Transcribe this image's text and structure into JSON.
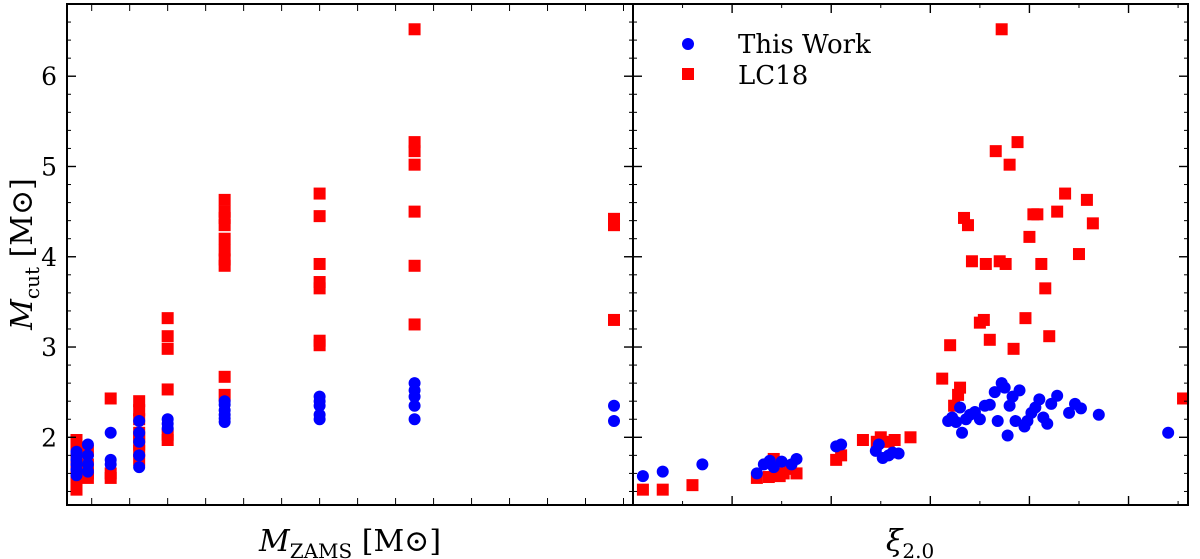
{
  "chart_data": [
    {
      "type": "scatter",
      "panel": "left",
      "xlabel": "M_ZAMS [M_⊙]",
      "ylabel": "M_cut [M_⊙]",
      "xlim": [
        10.7,
        40.5
      ],
      "ylim": [
        1.25,
        6.8
      ],
      "x_ticks_minor": [
        12,
        14,
        16,
        18,
        20,
        22,
        24,
        26,
        28,
        30,
        32,
        34,
        36,
        38,
        40
      ],
      "y_ticks": [
        2,
        3,
        4,
        5,
        6
      ],
      "y_tick_labels": [
        "2",
        "3",
        "4",
        "5",
        "6"
      ],
      "grid": false,
      "series": [
        {
          "name": "This Work",
          "marker": "circle",
          "color": "#0000ff",
          "points": [
            [
              11.2,
              1.58
            ],
            [
              11.2,
              1.64
            ],
            [
              11.2,
              1.7
            ],
            [
              11.2,
              1.75
            ],
            [
              11.2,
              1.8
            ],
            [
              11.2,
              1.84
            ],
            [
              11.8,
              1.62
            ],
            [
              11.8,
              1.7
            ],
            [
              11.8,
              1.8
            ],
            [
              11.8,
              1.92
            ],
            [
              13.0,
              1.7
            ],
            [
              13.0,
              1.75
            ],
            [
              13.0,
              2.05
            ],
            [
              14.5,
              1.67
            ],
            [
              14.5,
              1.8
            ],
            [
              14.5,
              1.95
            ],
            [
              14.5,
              2.05
            ],
            [
              14.5,
              2.18
            ],
            [
              16.0,
              2.1
            ],
            [
              16.0,
              2.15
            ],
            [
              16.0,
              2.2
            ],
            [
              19.0,
              2.17
            ],
            [
              19.0,
              2.21
            ],
            [
              19.0,
              2.25
            ],
            [
              19.0,
              2.3
            ],
            [
              19.0,
              2.36
            ],
            [
              19.0,
              2.4
            ],
            [
              24.0,
              2.2
            ],
            [
              24.0,
              2.25
            ],
            [
              24.0,
              2.35
            ],
            [
              24.0,
              2.4
            ],
            [
              24.0,
              2.45
            ],
            [
              29.0,
              2.2
            ],
            [
              29.0,
              2.35
            ],
            [
              29.0,
              2.45
            ],
            [
              29.0,
              2.52
            ],
            [
              29.0,
              2.6
            ],
            [
              39.5,
              2.18
            ],
            [
              39.5,
              2.35
            ]
          ]
        },
        {
          "name": "LC18",
          "marker": "square",
          "color": "#ff0000",
          "points": [
            [
              11.2,
              1.42
            ],
            [
              11.2,
              1.5
            ],
            [
              11.2,
              1.6
            ],
            [
              11.2,
              1.7
            ],
            [
              11.2,
              1.8
            ],
            [
              11.2,
              1.88
            ],
            [
              11.2,
              1.97
            ],
            [
              11.8,
              1.55
            ],
            [
              11.8,
              1.6
            ],
            [
              11.8,
              1.7
            ],
            [
              11.8,
              1.85
            ],
            [
              13.0,
              1.55
            ],
            [
              13.0,
              1.6
            ],
            [
              13.0,
              2.43
            ],
            [
              14.5,
              1.75
            ],
            [
              14.5,
              1.85
            ],
            [
              14.5,
              1.92
            ],
            [
              14.5,
              2.0
            ],
            [
              14.5,
              2.05
            ],
            [
              14.5,
              2.2
            ],
            [
              14.5,
              2.3
            ],
            [
              14.5,
              2.4
            ],
            [
              16.0,
              1.97
            ],
            [
              16.0,
              2.03
            ],
            [
              16.0,
              2.53
            ],
            [
              16.0,
              2.98
            ],
            [
              16.0,
              3.12
            ],
            [
              16.0,
              3.32
            ],
            [
              19.0,
              2.47
            ],
            [
              19.0,
              2.67
            ],
            [
              19.0,
              3.9
            ],
            [
              19.0,
              3.97
            ],
            [
              19.0,
              4.07
            ],
            [
              19.0,
              4.2
            ],
            [
              19.0,
              4.35
            ],
            [
              19.0,
              4.43
            ],
            [
              19.0,
              4.5
            ],
            [
              19.0,
              4.63
            ],
            [
              24.0,
              3.02
            ],
            [
              24.0,
              3.07
            ],
            [
              24.0,
              3.65
            ],
            [
              24.0,
              3.72
            ],
            [
              24.0,
              3.92
            ],
            [
              24.0,
              4.45
            ],
            [
              24.0,
              4.7
            ],
            [
              29.0,
              3.25
            ],
            [
              29.0,
              3.9
            ],
            [
              29.0,
              4.5
            ],
            [
              29.0,
              5.02
            ],
            [
              29.0,
              5.17
            ],
            [
              29.0,
              5.27
            ],
            [
              29.0,
              6.52
            ],
            [
              39.5,
              3.3
            ],
            [
              39.5,
              4.35
            ],
            [
              39.5,
              4.42
            ]
          ]
        }
      ]
    },
    {
      "type": "scatter",
      "panel": "right",
      "xlabel": "ξ_2.0",
      "ylabel": "",
      "xlim": [
        0.0,
        0.56
      ],
      "ylim": [
        1.25,
        6.8
      ],
      "x_ticks_major": [
        0.1,
        0.2,
        0.3,
        0.4,
        0.5
      ],
      "x_ticks_minor": [
        0.05,
        0.15,
        0.25,
        0.35,
        0.45,
        0.55
      ],
      "grid": false,
      "legend": {
        "position": "top-left",
        "entries": [
          "This Work",
          "LC18"
        ]
      },
      "series": [
        {
          "name": "This Work",
          "marker": "circle",
          "color": "#0000ff",
          "points": [
            [
              0.01,
              1.57
            ],
            [
              0.03,
              1.62
            ],
            [
              0.07,
              1.7
            ],
            [
              0.125,
              1.6
            ],
            [
              0.132,
              1.7
            ],
            [
              0.138,
              1.74
            ],
            [
              0.142,
              1.67
            ],
            [
              0.15,
              1.73
            ],
            [
              0.16,
              1.7
            ],
            [
              0.165,
              1.76
            ],
            [
              0.205,
              1.9
            ],
            [
              0.21,
              1.92
            ],
            [
              0.245,
              1.85
            ],
            [
              0.248,
              1.92
            ],
            [
              0.252,
              1.77
            ],
            [
              0.258,
              1.8
            ],
            [
              0.262,
              1.83
            ],
            [
              0.268,
              1.82
            ],
            [
              0.318,
              2.18
            ],
            [
              0.322,
              2.22
            ],
            [
              0.326,
              2.17
            ],
            [
              0.33,
              2.33
            ],
            [
              0.332,
              2.05
            ],
            [
              0.336,
              2.2
            ],
            [
              0.34,
              2.25
            ],
            [
              0.345,
              2.28
            ],
            [
              0.35,
              2.2
            ],
            [
              0.355,
              2.35
            ],
            [
              0.36,
              2.36
            ],
            [
              0.365,
              2.5
            ],
            [
              0.368,
              2.18
            ],
            [
              0.372,
              2.6
            ],
            [
              0.375,
              2.55
            ],
            [
              0.378,
              2.02
            ],
            [
              0.38,
              2.35
            ],
            [
              0.383,
              2.45
            ],
            [
              0.386,
              2.18
            ],
            [
              0.39,
              2.52
            ],
            [
              0.395,
              2.12
            ],
            [
              0.398,
              2.18
            ],
            [
              0.402,
              2.27
            ],
            [
              0.406,
              2.33
            ],
            [
              0.41,
              2.42
            ],
            [
              0.414,
              2.22
            ],
            [
              0.418,
              2.15
            ],
            [
              0.422,
              2.37
            ],
            [
              0.428,
              2.46
            ],
            [
              0.44,
              2.27
            ],
            [
              0.446,
              2.37
            ],
            [
              0.452,
              2.32
            ],
            [
              0.47,
              2.25
            ],
            [
              0.54,
              2.05
            ]
          ]
        },
        {
          "name": "LC18",
          "marker": "square",
          "color": "#ff0000",
          "points": [
            [
              0.01,
              1.42
            ],
            [
              0.03,
              1.42
            ],
            [
              0.06,
              1.47
            ],
            [
              0.125,
              1.55
            ],
            [
              0.137,
              1.56
            ],
            [
              0.142,
              1.76
            ],
            [
              0.148,
              1.57
            ],
            [
              0.152,
              1.6
            ],
            [
              0.158,
              1.65
            ],
            [
              0.165,
              1.6
            ],
            [
              0.205,
              1.75
            ],
            [
              0.21,
              1.8
            ],
            [
              0.232,
              1.97
            ],
            [
              0.246,
              1.95
            ],
            [
              0.25,
              2.0
            ],
            [
              0.258,
              1.95
            ],
            [
              0.264,
              1.97
            ],
            [
              0.28,
              2.0
            ],
            [
              0.312,
              2.65
            ],
            [
              0.32,
              3.02
            ],
            [
              0.324,
              2.35
            ],
            [
              0.328,
              2.47
            ],
            [
              0.33,
              2.55
            ],
            [
              0.334,
              4.43
            ],
            [
              0.338,
              4.35
            ],
            [
              0.342,
              3.95
            ],
            [
              0.35,
              3.27
            ],
            [
              0.354,
              3.3
            ],
            [
              0.356,
              3.92
            ],
            [
              0.36,
              3.08
            ],
            [
              0.366,
              5.17
            ],
            [
              0.37,
              3.95
            ],
            [
              0.372,
              6.52
            ],
            [
              0.376,
              3.92
            ],
            [
              0.38,
              5.02
            ],
            [
              0.384,
              2.98
            ],
            [
              0.388,
              5.27
            ],
            [
              0.396,
              3.32
            ],
            [
              0.4,
              4.22
            ],
            [
              0.404,
              4.47
            ],
            [
              0.408,
              4.47
            ],
            [
              0.412,
              3.92
            ],
            [
              0.416,
              3.65
            ],
            [
              0.42,
              3.12
            ],
            [
              0.428,
              4.5
            ],
            [
              0.436,
              4.7
            ],
            [
              0.45,
              4.03
            ],
            [
              0.458,
              4.63
            ],
            [
              0.464,
              4.37
            ],
            [
              0.555,
              2.43
            ]
          ]
        }
      ]
    }
  ]
}
